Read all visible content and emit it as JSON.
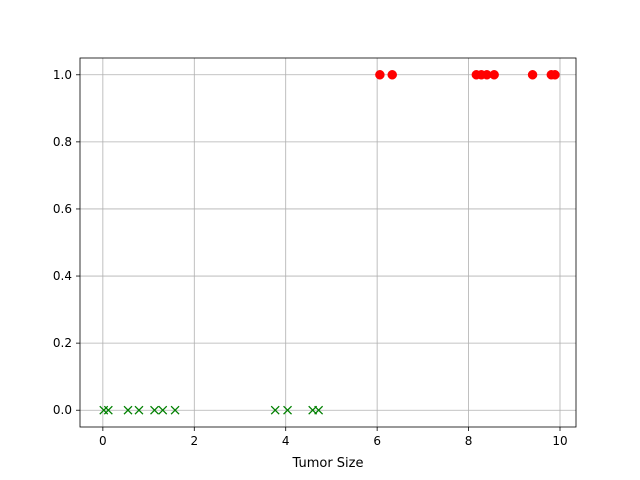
{
  "chart_data": {
    "type": "scatter",
    "title": "",
    "xlabel": "Tumor Size",
    "ylabel": "",
    "xlim": [
      -0.5,
      10.35
    ],
    "ylim": [
      -0.05,
      1.05
    ],
    "xticks": [
      0,
      2,
      4,
      6,
      8,
      10
    ],
    "yticks": [
      0.0,
      0.2,
      0.4,
      0.6,
      0.8,
      1.0
    ],
    "xtick_labels": [
      "0",
      "2",
      "4",
      "6",
      "8",
      "10"
    ],
    "ytick_labels": [
      "0.0",
      "0.2",
      "0.4",
      "0.6",
      "0.8",
      "1.0"
    ],
    "grid": true,
    "series": [
      {
        "marker": "x",
        "color": "#008000",
        "points": [
          {
            "x": 0.02,
            "y": 0
          },
          {
            "x": 0.12,
            "y": 0
          },
          {
            "x": 0.55,
            "y": 0
          },
          {
            "x": 0.79,
            "y": 0
          },
          {
            "x": 1.13,
            "y": 0
          },
          {
            "x": 1.31,
            "y": 0
          },
          {
            "x": 1.58,
            "y": 0
          },
          {
            "x": 3.77,
            "y": 0
          },
          {
            "x": 4.04,
            "y": 0
          },
          {
            "x": 4.59,
            "y": 0
          },
          {
            "x": 4.72,
            "y": 0
          }
        ]
      },
      {
        "marker": "o",
        "color": "#ff0000",
        "points": [
          {
            "x": 6.06,
            "y": 1
          },
          {
            "x": 6.33,
            "y": 1
          },
          {
            "x": 8.17,
            "y": 1
          },
          {
            "x": 8.28,
            "y": 1
          },
          {
            "x": 8.4,
            "y": 1
          },
          {
            "x": 8.56,
            "y": 1
          },
          {
            "x": 9.4,
            "y": 1
          },
          {
            "x": 9.81,
            "y": 1
          },
          {
            "x": 9.89,
            "y": 1
          }
        ]
      }
    ]
  }
}
